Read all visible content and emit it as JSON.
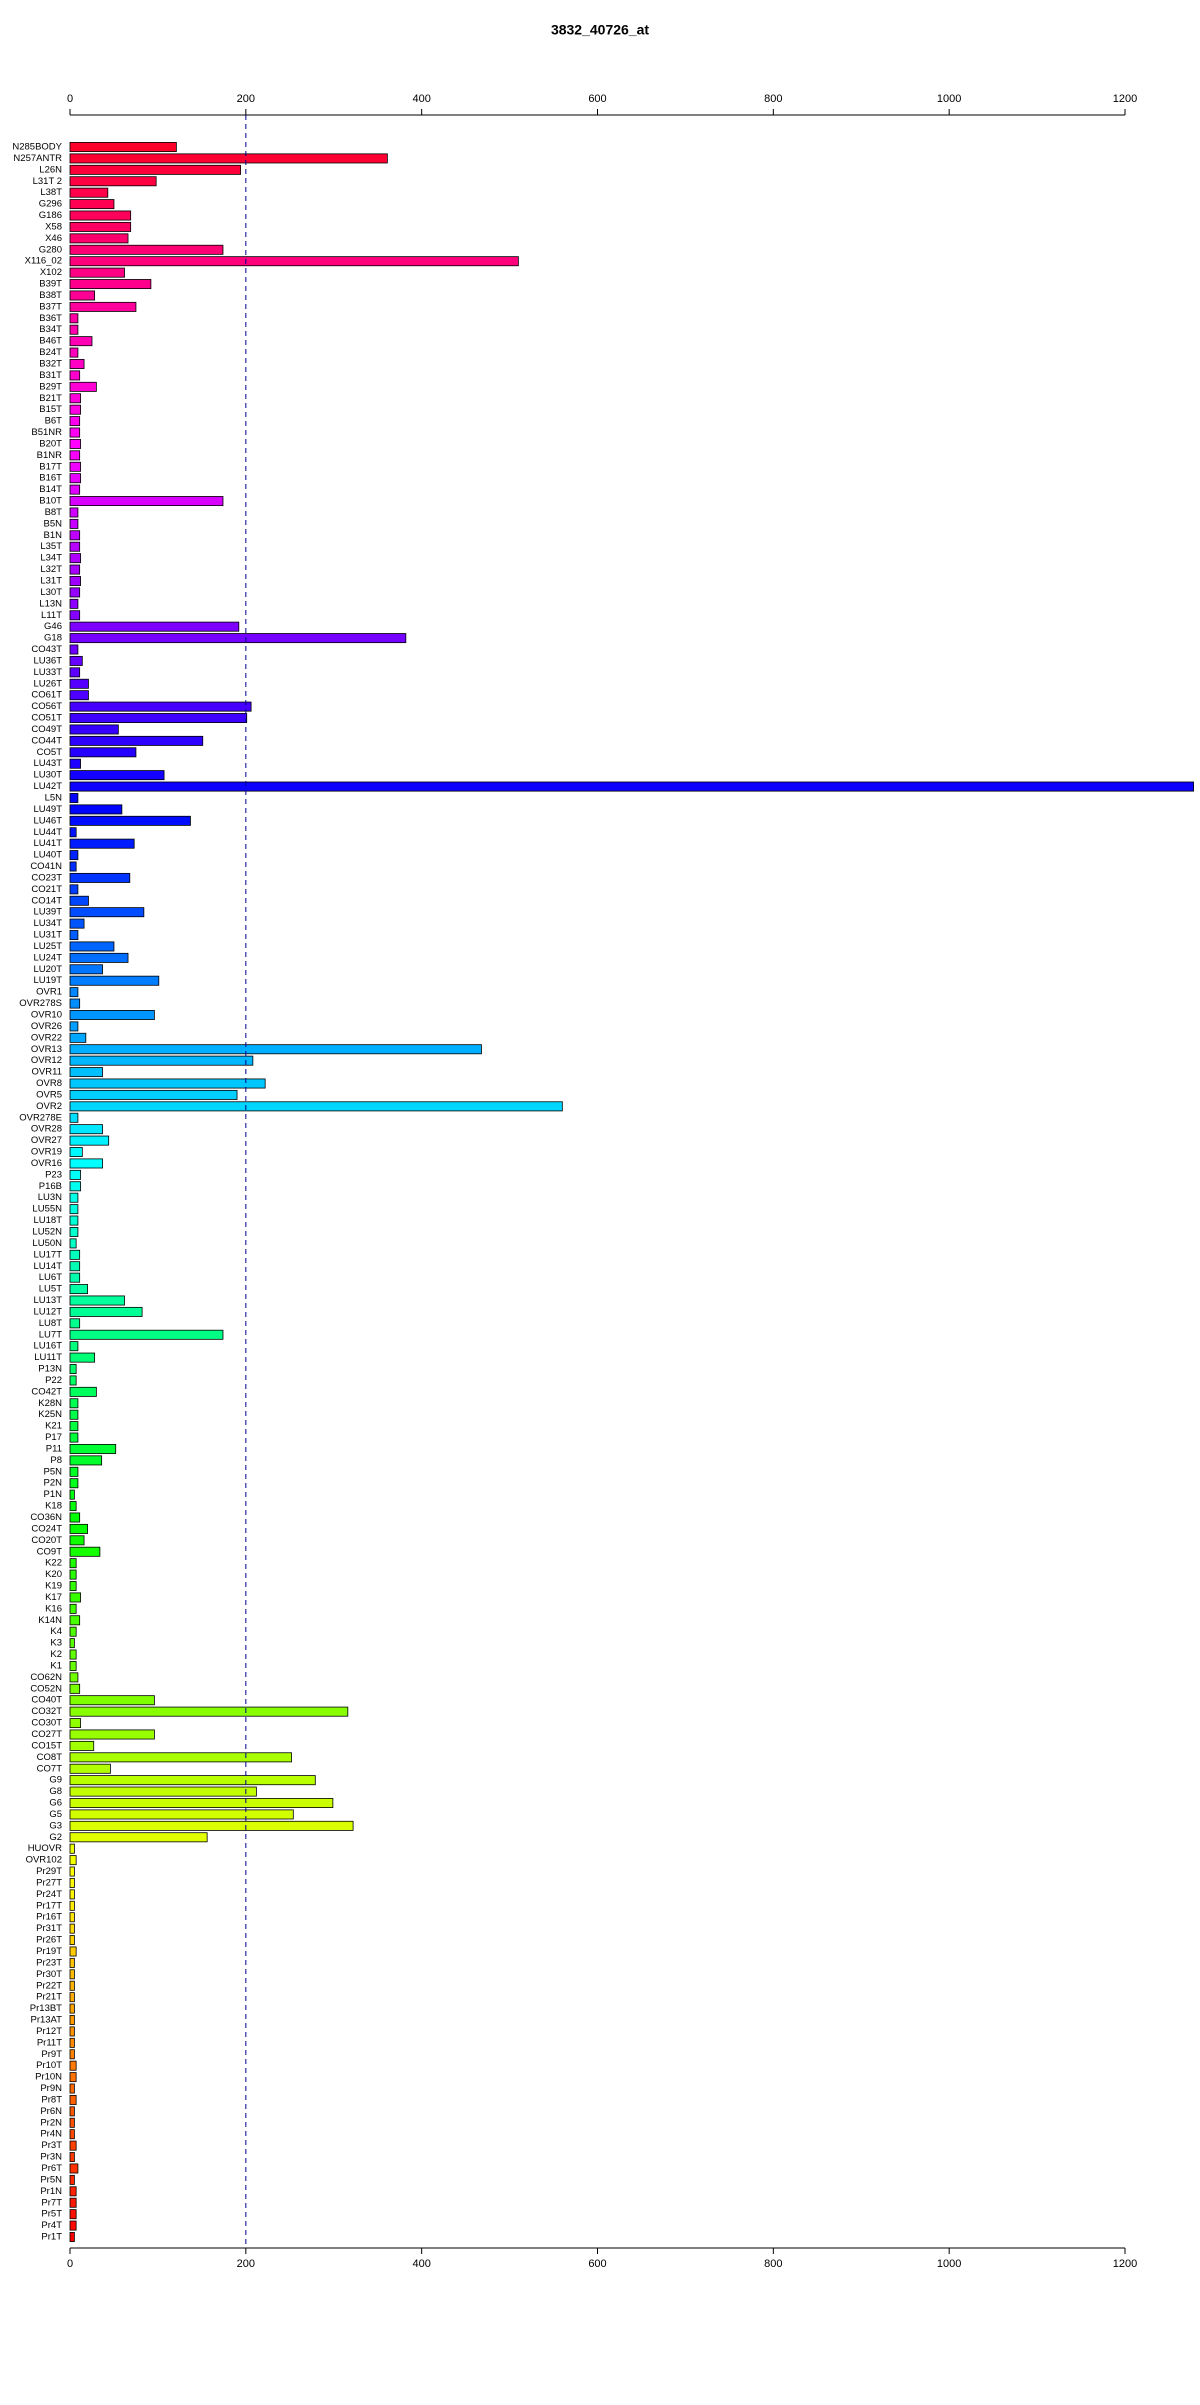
{
  "chart_data": {
    "type": "barh",
    "title": "3832_40726_at",
    "categories": [
      "N285BODY",
      "N257ANTR",
      "L26N",
      "L31T 2",
      "L38T",
      "G296",
      "G186",
      "X58",
      "X46",
      "G280",
      "X116_02",
      "X102",
      "B39T",
      "B38T",
      "B37T",
      "B36T",
      "B34T",
      "B46T",
      "B24T",
      "B32T",
      "B31T",
      "B29T",
      "B21T",
      "B15T",
      "B6T",
      "B51NR",
      "B20T",
      "B1NR",
      "B17T",
      "B16T",
      "B14T",
      "B10T",
      "B8T",
      "B5N",
      "B1N",
      "L35T",
      "L34T",
      "L32T",
      "L31T",
      "L30T",
      "L13N",
      "L11T",
      "G46",
      "G18",
      "CO43T",
      "LU36T",
      "LU33T",
      "LU26T",
      "CO61T",
      "CO56T",
      "CO51T",
      "CO49T",
      "CO44T",
      "CO5T",
      "LU43T",
      "LU30T",
      "LU42T",
      "L5N",
      "LU49T",
      "LU46T",
      "LU44T",
      "LU41T",
      "LU40T",
      "CO41N",
      "CO23T",
      "CO21T",
      "CO14T",
      "LU39T",
      "LU34T",
      "LU31T",
      "LU25T",
      "LU24T",
      "LU20T",
      "LU19T",
      "OVR1",
      "OVR278S",
      "OVR10",
      "OVR26",
      "OVR22",
      "OVR13",
      "OVR12",
      "OVR11",
      "OVR8",
      "OVR5",
      "OVR2",
      "OVR278E",
      "OVR28",
      "OVR27",
      "OVR19",
      "OVR16",
      "P23",
      "P16B",
      "LU3N",
      "LU55N",
      "LU18T",
      "LU52N",
      "LU50N",
      "LU17T",
      "LU14T",
      "LU6T",
      "LU5T",
      "LU13T",
      "LU12T",
      "LU8T",
      "LU7T",
      "LU16T",
      "LU11T",
      "P13N",
      "P22",
      "CO42T",
      "K28N",
      "K25N",
      "K21",
      "P17",
      "P11",
      "P8",
      "P5N",
      "P2N",
      "P1N",
      "K18",
      "CO36N",
      "CO24T",
      "CO20T",
      "CO9T",
      "K22",
      "K20",
      "K19",
      "K17",
      "K16",
      "K14N",
      "K4",
      "K3",
      "K2",
      "K1",
      "CO62N",
      "CO52N",
      "CO40T",
      "CO32T",
      "CO30T",
      "CO27T",
      "CO15T",
      "CO8T",
      "CO7T",
      "G9",
      "G8",
      "G6",
      "G5",
      "G3",
      "G2",
      "HUOVR",
      "OVR102",
      "Pr29T",
      "Pr27T",
      "Pr24T",
      "Pr17T",
      "Pr16T",
      "Pr31T",
      "Pr26T",
      "Pr19T",
      "Pr23T",
      "Pr30T",
      "Pr22T",
      "Pr21T",
      "Pr13BT",
      "Pr13AT",
      "Pr12T",
      "Pr11T",
      "Pr9T",
      "Pr10T",
      "Pr10N",
      "Pr9N",
      "Pr8T",
      "Pr6N",
      "Pr2N",
      "Pr4N",
      "Pr3T",
      "Pr3N",
      "Pr6T",
      "Pr5N",
      "Pr1N",
      "Pr7T",
      "Pr5T",
      "Pr4T",
      "Pr1T"
    ],
    "values": [
      121,
      361,
      194,
      98,
      43,
      50,
      69,
      69,
      66,
      174,
      510,
      62,
      92,
      28,
      75,
      9,
      9,
      25,
      9,
      16,
      11,
      30,
      12,
      12,
      11,
      11,
      12,
      11,
      12,
      12,
      11,
      174,
      9,
      9,
      11,
      11,
      12,
      11,
      12,
      11,
      9,
      11,
      192,
      382,
      9,
      14,
      11,
      21,
      21,
      206,
      201,
      55,
      151,
      75,
      12,
      107,
      1278,
      9,
      59,
      137,
      7,
      73,
      9,
      7,
      68,
      9,
      21,
      84,
      16,
      9,
      50,
      66,
      37,
      101,
      9,
      11,
      96,
      9,
      18,
      468,
      208,
      37,
      222,
      190,
      560,
      9,
      37,
      44,
      14,
      37,
      12,
      12,
      9,
      9,
      9,
      9,
      7,
      11,
      11,
      11,
      20,
      62,
      82,
      11,
      174,
      9,
      28,
      7,
      7,
      30,
      9,
      9,
      9,
      9,
      52,
      36,
      9,
      9,
      5,
      7,
      11,
      20,
      16,
      34,
      7,
      7,
      7,
      12,
      7,
      11,
      7,
      5,
      7,
      7,
      9,
      11,
      96,
      316,
      12,
      96,
      27,
      252,
      46,
      279,
      212,
      299,
      254,
      322,
      156,
      5,
      7,
      5,
      5,
      5,
      5,
      5,
      5,
      5,
      7,
      5,
      5,
      5,
      5,
      5,
      5,
      5,
      5,
      5,
      7,
      7,
      5,
      7,
      5,
      5,
      5,
      7,
      5,
      9,
      5,
      7,
      7,
      7,
      7,
      5
    ],
    "colormap": "rainbow",
    "xlim": [
      0,
      1200
    ],
    "xticks": [
      0,
      200,
      400,
      600,
      800,
      1000,
      1200
    ],
    "reference_line": 200
  }
}
